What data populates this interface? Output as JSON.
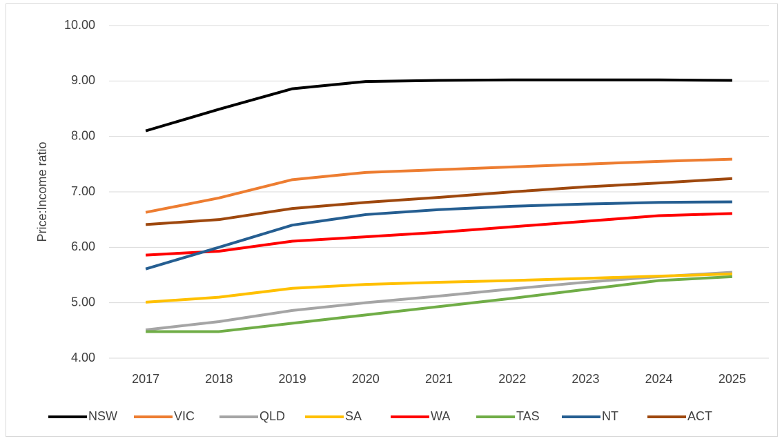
{
  "chart_data": {
    "type": "line",
    "y_label": "Price:Income ratio",
    "categories": [
      "2017",
      "2018",
      "2019",
      "2020",
      "2021",
      "2022",
      "2023",
      "2024",
      "2025"
    ],
    "series": [
      {
        "name": "NSW",
        "color": "#000000",
        "values": [
          8.1,
          8.49,
          8.86,
          8.99,
          9.01,
          9.02,
          9.02,
          9.02,
          9.01
        ]
      },
      {
        "name": "VIC",
        "color": "#ed7d31",
        "values": [
          6.63,
          6.89,
          7.22,
          7.35,
          7.4,
          7.45,
          7.5,
          7.55,
          7.59
        ]
      },
      {
        "name": "QLD",
        "color": "#a5a5a5",
        "values": [
          4.51,
          4.66,
          4.86,
          5.0,
          5.12,
          5.25,
          5.37,
          5.47,
          5.55
        ]
      },
      {
        "name": "SA",
        "color": "#ffc000",
        "values": [
          5.01,
          5.1,
          5.26,
          5.33,
          5.37,
          5.4,
          5.44,
          5.48,
          5.52
        ]
      },
      {
        "name": "WA",
        "color": "#ff0000",
        "values": [
          5.86,
          5.93,
          6.11,
          6.19,
          6.27,
          6.37,
          6.47,
          6.57,
          6.61
        ]
      },
      {
        "name": "TAS",
        "color": "#70ad47",
        "values": [
          4.48,
          4.48,
          4.63,
          4.78,
          4.93,
          5.08,
          5.24,
          5.4,
          5.47
        ]
      },
      {
        "name": "NT",
        "color": "#255e91",
        "values": [
          5.61,
          6.0,
          6.4,
          6.59,
          6.68,
          6.74,
          6.78,
          6.81,
          6.82
        ]
      },
      {
        "name": "ACT",
        "color": "#9e480e",
        "values": [
          6.41,
          6.5,
          6.7,
          6.81,
          6.9,
          7.0,
          7.09,
          7.16,
          7.24
        ]
      }
    ],
    "ylim": [
      4,
      10
    ],
    "yticks": [
      {
        "value": 4,
        "label": "4.00"
      },
      {
        "value": 5,
        "label": "5.00"
      },
      {
        "value": 6,
        "label": "6.00"
      },
      {
        "value": 7,
        "label": "7.00"
      },
      {
        "value": 8,
        "label": "8.00"
      },
      {
        "value": 9,
        "label": "9.00"
      },
      {
        "value": 10,
        "label": "10.00"
      }
    ],
    "grid": true,
    "legend": "bottom"
  }
}
